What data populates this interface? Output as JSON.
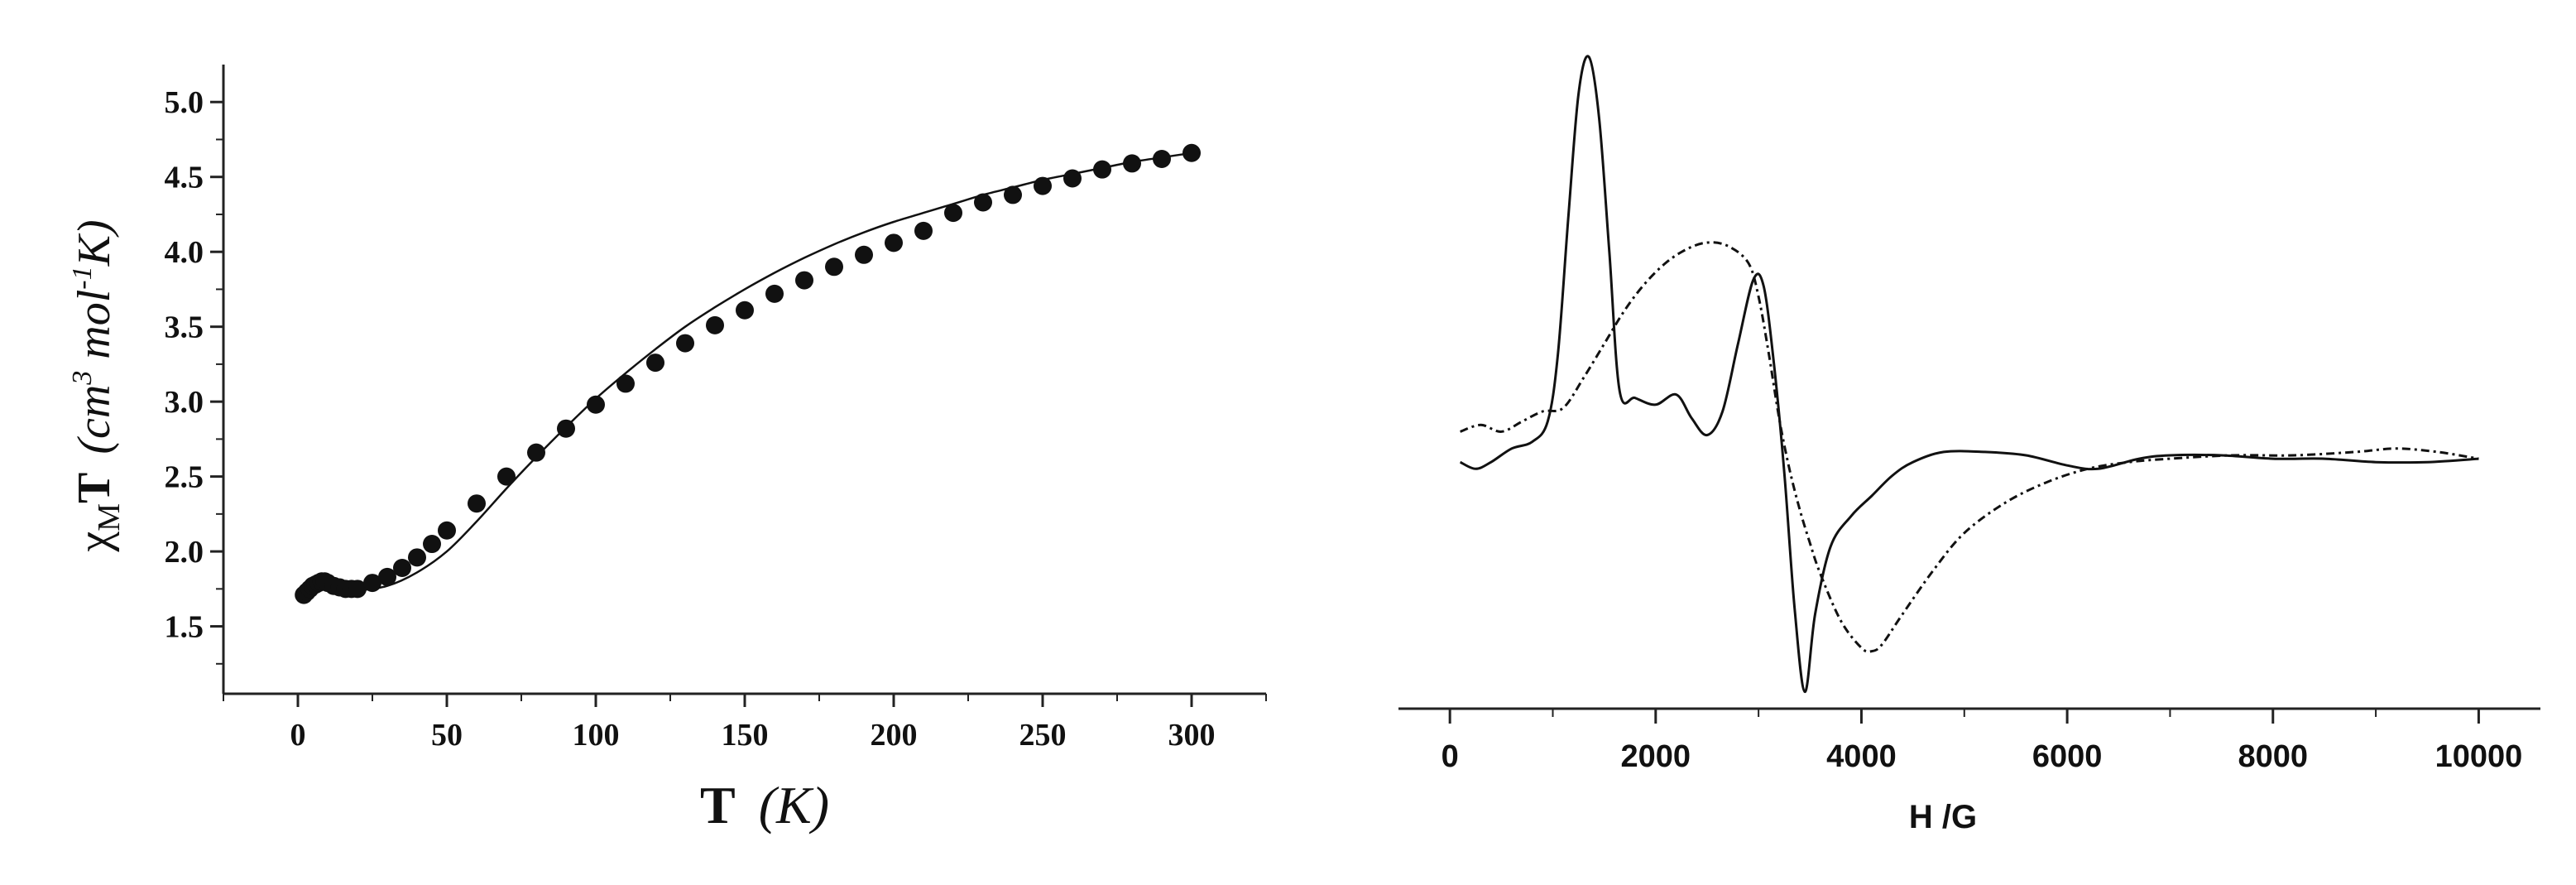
{
  "chart_data": [
    {
      "type": "scatter",
      "xlabel_main": "T",
      "xlabel_unit": "(K)",
      "ylabel": "χMT (cm3 mol-1 K)",
      "ylabel_parts": {
        "chi": "χ",
        "sub": "M",
        "T": "T",
        "open": "(",
        "cm": "cm",
        "sup3": "3",
        "mol": " mol",
        "supm1": "-1",
        "K": "K",
        "close": ")"
      },
      "xlim": [
        -25,
        325
      ],
      "ylim": [
        1.05,
        5.25
      ],
      "xticks": [
        0,
        50,
        100,
        150,
        200,
        250,
        300
      ],
      "xtick_labels": [
        "0",
        "50",
        "100",
        "150",
        "200",
        "250",
        "300"
      ],
      "yticks": [
        1.5,
        2.0,
        2.5,
        3.0,
        3.5,
        4.0,
        4.5,
        5.0
      ],
      "ytick_labels": [
        "1.5",
        "2.0",
        "2.5",
        "3.0",
        "3.5",
        "4.0",
        "4.5",
        "5.0"
      ],
      "series": [
        {
          "style": "markers",
          "x": [
            2,
            3,
            4,
            5,
            6,
            7,
            8,
            9,
            10,
            12,
            14,
            16,
            18,
            20,
            25,
            30,
            35,
            40,
            45,
            50,
            60,
            70,
            80,
            90,
            100,
            110,
            120,
            130,
            140,
            150,
            160,
            170,
            180,
            190,
            200,
            210,
            220,
            230,
            240,
            250,
            260,
            270,
            280,
            290,
            300
          ],
          "y": [
            1.71,
            1.73,
            1.75,
            1.77,
            1.78,
            1.79,
            1.8,
            1.8,
            1.79,
            1.77,
            1.76,
            1.75,
            1.75,
            1.75,
            1.79,
            1.83,
            1.89,
            1.96,
            2.05,
            2.14,
            2.32,
            2.5,
            2.66,
            2.82,
            2.98,
            3.12,
            3.26,
            3.39,
            3.51,
            3.61,
            3.72,
            3.81,
            3.9,
            3.98,
            4.06,
            4.14,
            4.26,
            4.33,
            4.38,
            4.44,
            4.49,
            4.55,
            4.59,
            4.62,
            4.66
          ]
        },
        {
          "style": "solid",
          "x": [
            2,
            5,
            10,
            15,
            20,
            30,
            40,
            50,
            60,
            70,
            80,
            90,
            100,
            110,
            120,
            130,
            140,
            150,
            160,
            170,
            180,
            190,
            200,
            210,
            220,
            230,
            240,
            250,
            260,
            270,
            280,
            290,
            300
          ],
          "y": [
            1.7,
            1.74,
            1.77,
            1.75,
            1.74,
            1.77,
            1.86,
            2.0,
            2.2,
            2.42,
            2.63,
            2.83,
            3.02,
            3.19,
            3.35,
            3.5,
            3.63,
            3.75,
            3.86,
            3.96,
            4.05,
            4.13,
            4.2,
            4.26,
            4.32,
            4.38,
            4.43,
            4.48,
            4.52,
            4.56,
            4.6,
            4.63,
            4.66
          ]
        }
      ]
    },
    {
      "type": "line",
      "xlabel": "H /G",
      "xlim": [
        -500,
        10600
      ],
      "ylim": [
        -1.0,
        1.0
      ],
      "xticks": [
        0,
        2000,
        4000,
        6000,
        8000,
        10000
      ],
      "xtick_labels": [
        "0",
        "2000",
        "4000",
        "6000",
        "8000",
        "10000"
      ],
      "series": [
        {
          "style": "solid",
          "x": [
            100,
            250,
            400,
            600,
            800,
            950,
            1050,
            1150,
            1250,
            1350,
            1450,
            1550,
            1650,
            1800,
            2000,
            2200,
            2350,
            2500,
            2650,
            2800,
            2950,
            3050,
            3150,
            3250,
            3350,
            3450,
            3550,
            3700,
            3900,
            4100,
            4300,
            4500,
            4800,
            5200,
            5600,
            6000,
            6300,
            6700,
            7000,
            7500,
            8000,
            8500,
            9000,
            9500,
            10000
          ],
          "y": [
            -0.27,
            -0.29,
            -0.27,
            -0.23,
            -0.21,
            -0.15,
            0.05,
            0.45,
            0.82,
            0.93,
            0.75,
            0.35,
            -0.06,
            -0.08,
            -0.1,
            -0.07,
            -0.14,
            -0.19,
            -0.12,
            0.08,
            0.27,
            0.25,
            0.02,
            -0.3,
            -0.7,
            -0.95,
            -0.72,
            -0.52,
            -0.43,
            -0.37,
            -0.31,
            -0.27,
            -0.24,
            -0.24,
            -0.25,
            -0.28,
            -0.29,
            -0.26,
            -0.25,
            -0.25,
            -0.26,
            -0.26,
            -0.27,
            -0.27,
            -0.26
          ]
        },
        {
          "style": "dashdot",
          "x": [
            100,
            300,
            500,
            700,
            900,
            1100,
            1300,
            1500,
            1700,
            1900,
            2100,
            2300,
            2500,
            2700,
            2900,
            3000,
            3100,
            3200,
            3300,
            3400,
            3500,
            3600,
            3800,
            4000,
            4100,
            4200,
            4400,
            4700,
            5000,
            5400,
            5800,
            6200,
            6600,
            7000,
            7600,
            8200,
            8800,
            9200,
            9600,
            10000
          ],
          "y": [
            -0.18,
            -0.16,
            -0.18,
            -0.15,
            -0.12,
            -0.11,
            -0.02,
            0.08,
            0.18,
            0.26,
            0.32,
            0.36,
            0.38,
            0.37,
            0.32,
            0.22,
            0.05,
            -0.14,
            -0.29,
            -0.41,
            -0.51,
            -0.6,
            -0.74,
            -0.82,
            -0.83,
            -0.81,
            -0.72,
            -0.59,
            -0.48,
            -0.39,
            -0.33,
            -0.29,
            -0.27,
            -0.26,
            -0.25,
            -0.25,
            -0.24,
            -0.23,
            -0.24,
            -0.26
          ]
        }
      ]
    }
  ]
}
